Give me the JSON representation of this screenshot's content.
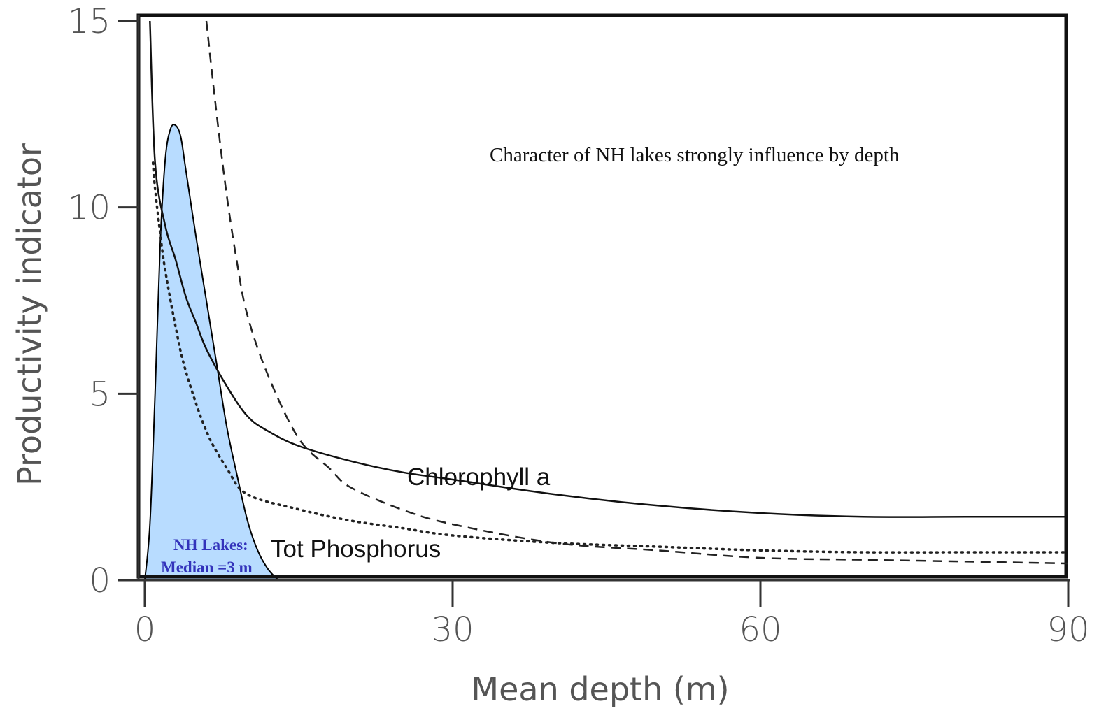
{
  "chart_data": {
    "type": "line",
    "title": "",
    "xlabel": "Mean depth (m)",
    "ylabel": "Productivity indicator",
    "xlim": [
      0,
      90
    ],
    "ylim": [
      0,
      15
    ],
    "xticks": [
      "0",
      "30",
      "60",
      "90"
    ],
    "yticks": [
      "0",
      "5",
      "10",
      "15"
    ],
    "grid": false,
    "annotation": "Character of  NH lakes strongly influence by depth",
    "series": [
      {
        "name": "Chlorophyll a",
        "style": "solid",
        "x": [
          0.5,
          1,
          2,
          3,
          4,
          5,
          6,
          8,
          10,
          12,
          15,
          20,
          25,
          30,
          40,
          50,
          60,
          70,
          80,
          90
        ],
        "y": [
          15,
          11.2,
          9.5,
          8.6,
          7.6,
          6.9,
          6.2,
          5.2,
          4.4,
          4.0,
          3.6,
          3.2,
          2.9,
          2.7,
          2.3,
          2.0,
          1.8,
          1.7,
          1.7,
          1.7
        ]
      },
      {
        "name": "Tot Phosphorus",
        "style": "dotted",
        "x": [
          0.8,
          1,
          1.5,
          2,
          3,
          4,
          6,
          8,
          10,
          15,
          20,
          25,
          30,
          40,
          50,
          60,
          70,
          80,
          90
        ],
        "y": [
          11.2,
          10.5,
          9.3,
          8.3,
          6.8,
          5.6,
          4.0,
          3.0,
          2.3,
          1.9,
          1.6,
          1.4,
          1.2,
          1.0,
          0.9,
          0.8,
          0.75,
          0.75,
          0.75
        ]
      },
      {
        "name": "",
        "style": "dashed",
        "x": [
          6,
          7,
          8,
          9,
          10,
          12,
          15,
          18,
          20,
          25,
          30,
          40,
          50,
          60,
          70,
          80,
          90
        ],
        "y": [
          15,
          12.5,
          10.3,
          8.5,
          7.1,
          5.5,
          3.8,
          3.0,
          2.5,
          1.9,
          1.5,
          1.0,
          0.8,
          0.6,
          0.55,
          0.5,
          0.45
        ]
      }
    ],
    "distribution": {
      "label_line1": "NH Lakes:",
      "label_line2": "Median =3  m",
      "fill_color": "#b8dcff",
      "label_color": "#3333bb",
      "x": [
        0,
        0.5,
        1,
        1.5,
        2,
        2.5,
        3,
        3.5,
        4,
        5,
        6,
        7,
        8,
        9,
        10,
        11,
        12,
        13
      ],
      "y": [
        0,
        1.5,
        5,
        9,
        11.3,
        12.1,
        12.2,
        11.9,
        11.0,
        9.2,
        7.5,
        5.8,
        4.1,
        2.8,
        1.6,
        0.8,
        0.3,
        0
      ]
    }
  }
}
